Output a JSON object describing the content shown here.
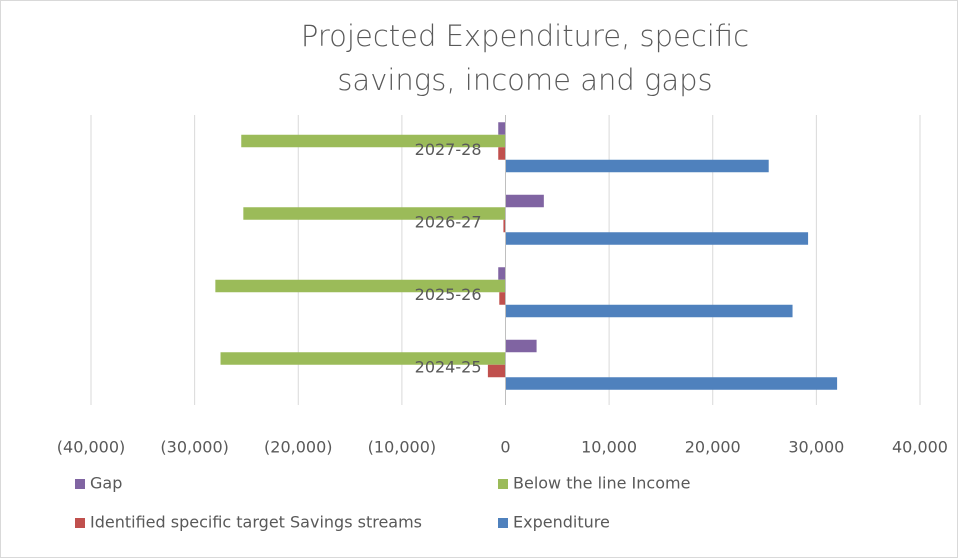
{
  "chart_data": {
    "type": "bar",
    "orientation": "horizontal",
    "title": "Projected Expenditure, specific savings, income and gaps",
    "categories": [
      "2024-25",
      "2025-26",
      "2026-27",
      "2027-28"
    ],
    "series": [
      {
        "name": "Gap",
        "color": "#8064a2",
        "values": [
          3000,
          -700,
          3700,
          -700
        ]
      },
      {
        "name": "Below the line Income",
        "color": "#9bbb59",
        "values": [
          -27500,
          -28000,
          -25300,
          -25500
        ]
      },
      {
        "name": "Identified specific target Savings streams",
        "color": "#c0504d",
        "values": [
          -1700,
          -600,
          -200,
          -700
        ]
      },
      {
        "name": "Expenditure",
        "color": "#4f81bd",
        "values": [
          32000,
          27700,
          29200,
          25400
        ]
      }
    ],
    "xlim": [
      -40000,
      40000
    ],
    "xticks": [
      {
        "value": -40000,
        "label": "(40,000)"
      },
      {
        "value": -30000,
        "label": "(30,000)"
      },
      {
        "value": -20000,
        "label": "(20,000)"
      },
      {
        "value": -10000,
        "label": "(10,000)"
      },
      0,
      {
        "value": 10000,
        "label": "10,000"
      },
      {
        "value": 20000,
        "label": "20,000"
      },
      {
        "value": 30000,
        "label": "30,000"
      },
      {
        "value": 40000,
        "label": "40,000"
      }
    ],
    "grid": true,
    "legend": "bottom"
  }
}
